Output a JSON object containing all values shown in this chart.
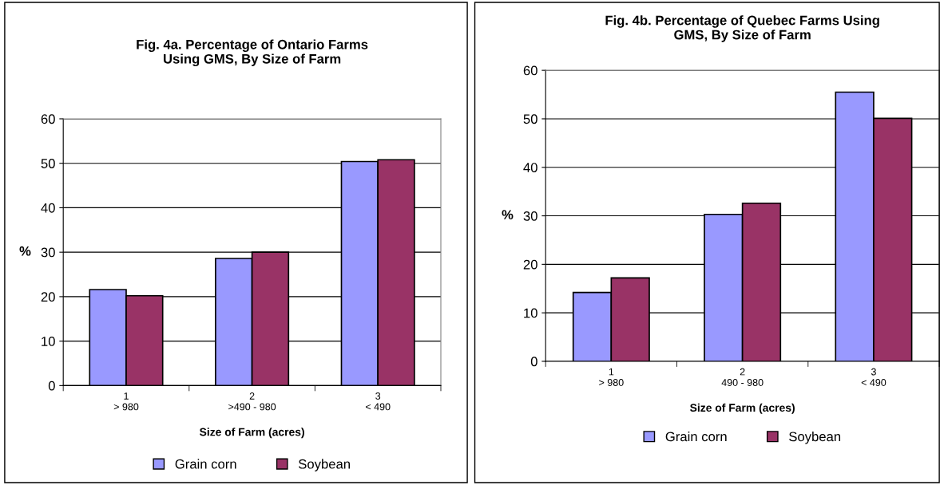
{
  "chart_data": [
    {
      "type": "bar",
      "title": "Fig. 4a. Percentage of Ontario Farms\nUsing GMS, By Size of Farm",
      "xlabel": "Size of Farm (acres)",
      "ylabel": "%",
      "categories": [
        "1\n> 980",
        "2\n>490 - 980",
        "3\n< 490"
      ],
      "series": [
        {
          "name": "Grain corn",
          "color": "#9999ff",
          "values": [
            21.6,
            28.6,
            50.4
          ]
        },
        {
          "name": "Soybean",
          "color": "#993366",
          "values": [
            20.2,
            30.0,
            50.8
          ]
        }
      ],
      "ylim": [
        0,
        60
      ],
      "yticks": [
        0,
        10,
        20,
        30,
        40,
        50,
        60
      ],
      "grid": "y",
      "legend": "bottom"
    },
    {
      "type": "bar",
      "title": "Fig. 4b. Percentage of Quebec Farms Using\nGMS, By Size of Farm",
      "xlabel": "Size of Farm (acres)",
      "ylabel": "%",
      "categories": [
        "1\n> 980",
        "2\n490 - 980",
        "3\n< 490"
      ],
      "series": [
        {
          "name": "Grain corn",
          "color": "#9999ff",
          "values": [
            14.2,
            30.3,
            55.5
          ]
        },
        {
          "name": "Soybean",
          "color": "#993366",
          "values": [
            17.2,
            32.6,
            50.1
          ]
        }
      ],
      "ylim": [
        0,
        60
      ],
      "yticks": [
        0,
        10,
        20,
        30,
        40,
        50,
        60
      ],
      "grid": "y",
      "legend": "bottom"
    }
  ]
}
